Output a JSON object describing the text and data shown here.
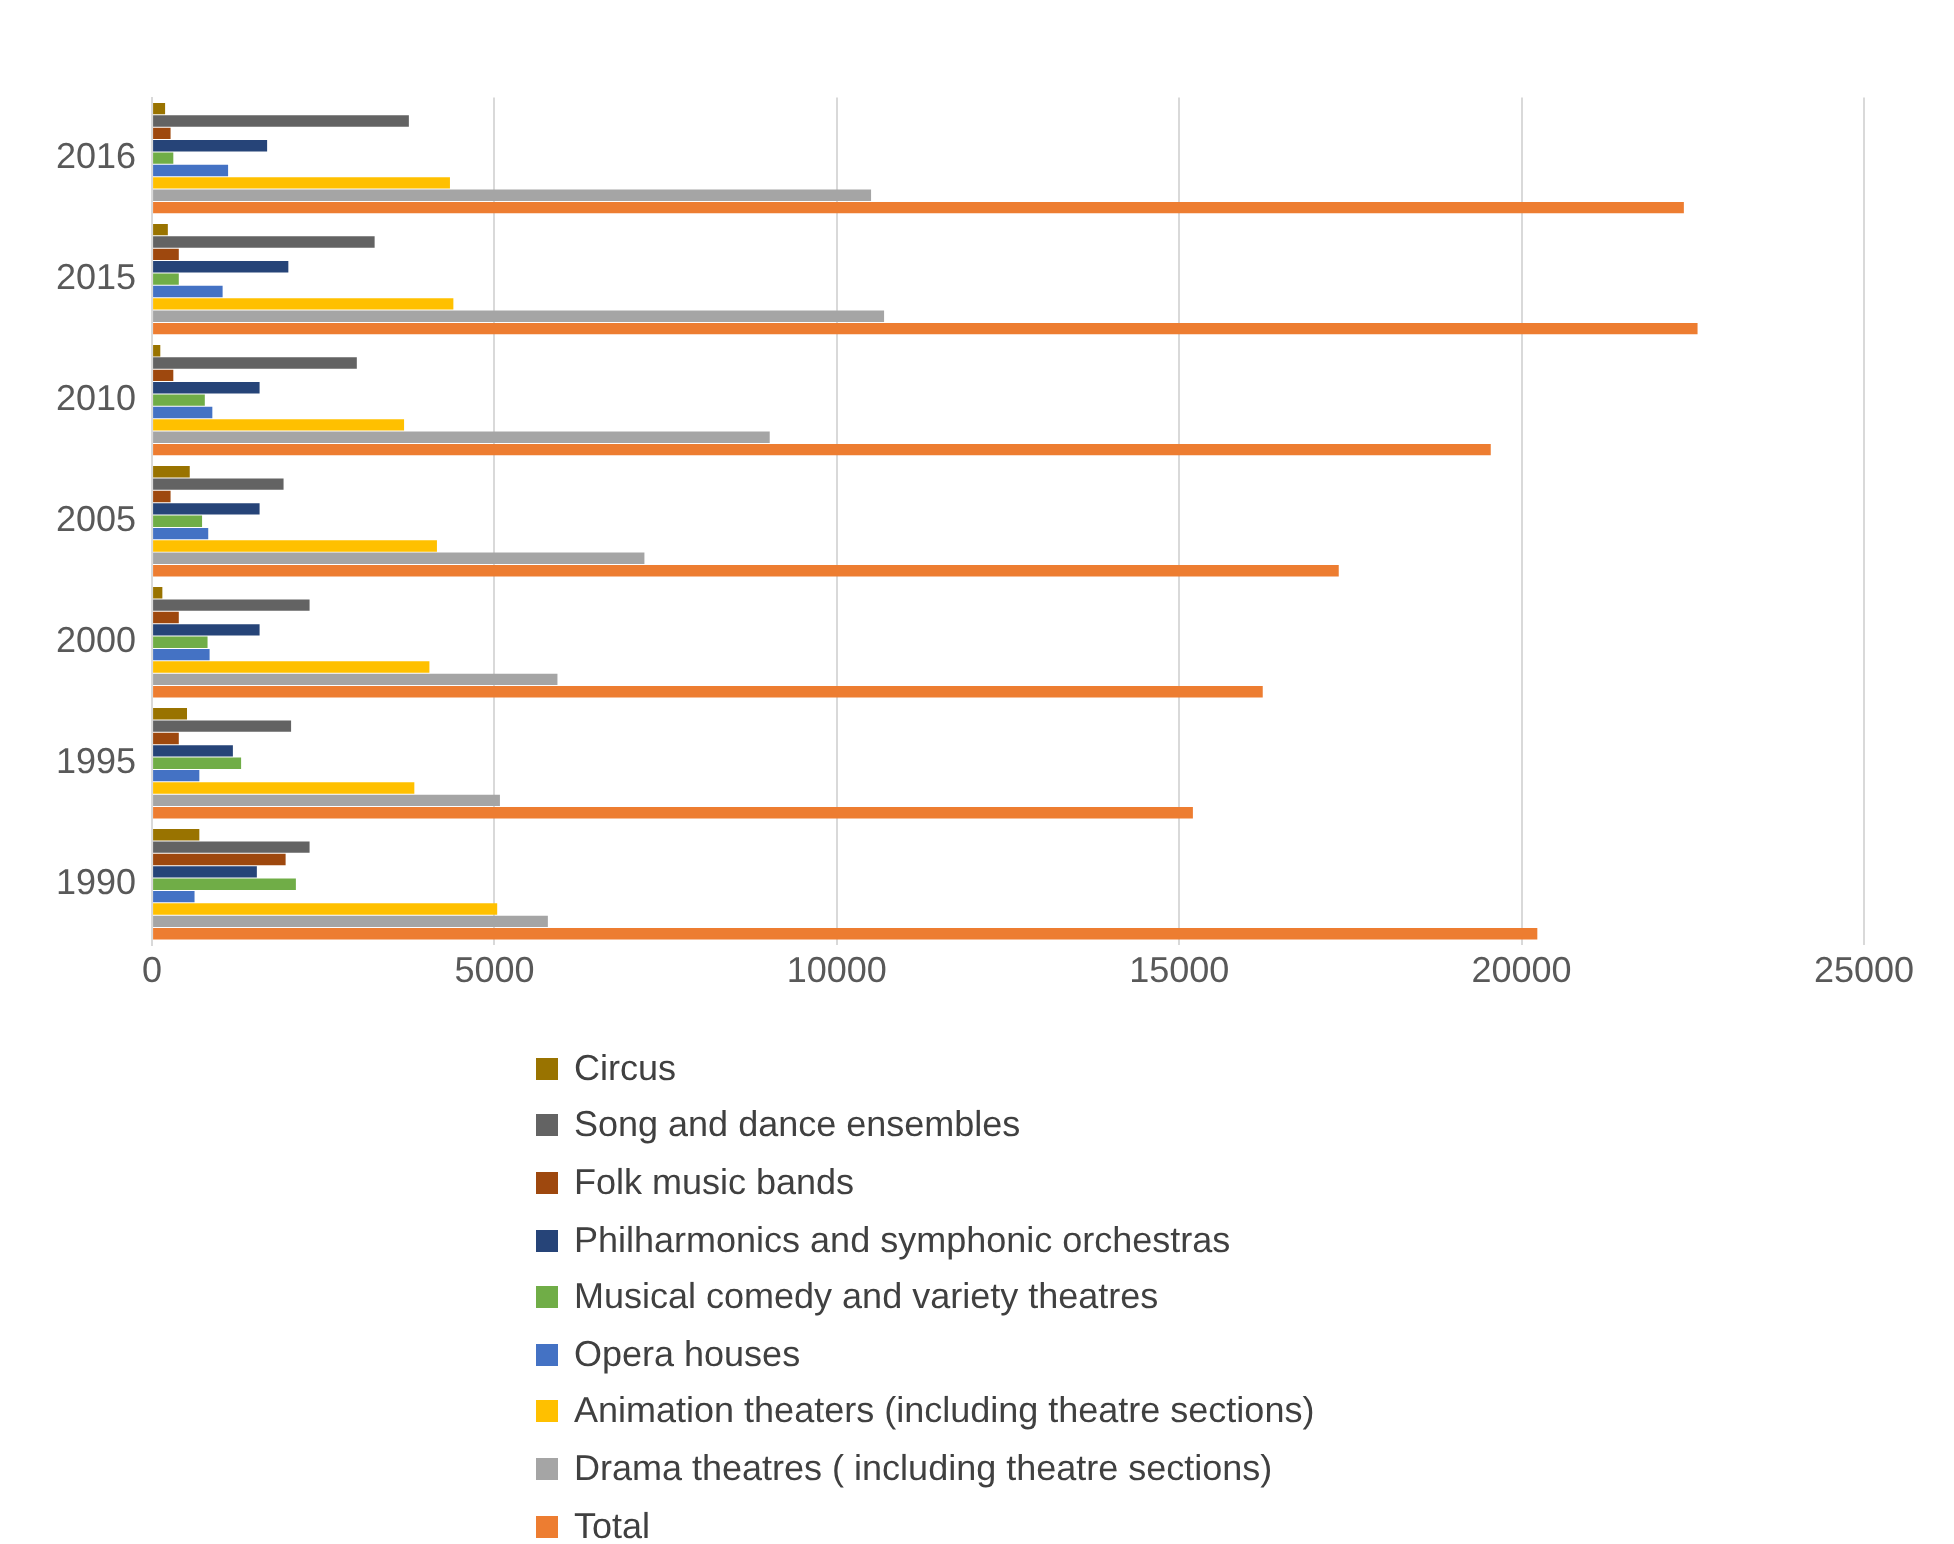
{
  "chart_data": {
    "type": "bar",
    "orientation": "horizontal",
    "categories": [
      "2016",
      "2015",
      "2010",
      "2005",
      "2000",
      "1995",
      "1990"
    ],
    "xlim": [
      0,
      25000
    ],
    "xticks": [
      0,
      5000,
      10000,
      15000,
      20000,
      25000
    ],
    "grid": "x",
    "legend": "bottom",
    "series": [
      {
        "name": "Circus",
        "color": "#997300",
        "values": [
          190,
          230,
          120,
          550,
          150,
          510,
          690
        ]
      },
      {
        "name": "Song and dance ensembles",
        "color": "#636363",
        "values": [
          3750,
          3250,
          2990,
          1920,
          2300,
          2030,
          2300
        ]
      },
      {
        "name": "Folk music bands",
        "color": "#9e480e",
        "values": [
          270,
          390,
          310,
          270,
          390,
          390,
          1950
        ]
      },
      {
        "name": "Philharmonics and symphonic orchestras",
        "color": "#264478",
        "values": [
          1680,
          1990,
          1570,
          1570,
          1570,
          1180,
          1530
        ]
      },
      {
        "name": "Musical comedy and variety theatres",
        "color": "#70ad47",
        "values": [
          310,
          390,
          770,
          730,
          810,
          1300,
          2100
        ]
      },
      {
        "name": "Opera houses",
        "color": "#4472c4",
        "values": [
          1110,
          1030,
          880,
          820,
          840,
          690,
          620
        ]
      },
      {
        "name": "Animation theaters (including theatre sections)",
        "color": "#ffc000",
        "values": [
          4350,
          4400,
          3680,
          4160,
          4050,
          3830,
          5040
        ]
      },
      {
        "name": "Drama theatres ( including theatre sections)",
        "color": "#a5a5a5",
        "values": [
          10500,
          10690,
          9020,
          7190,
          5920,
          5080,
          5780
        ]
      },
      {
        "name": "Total",
        "color": "#ed7d31",
        "values": [
          22370,
          22570,
          19550,
          17330,
          16220,
          15200,
          20230
        ]
      }
    ]
  }
}
